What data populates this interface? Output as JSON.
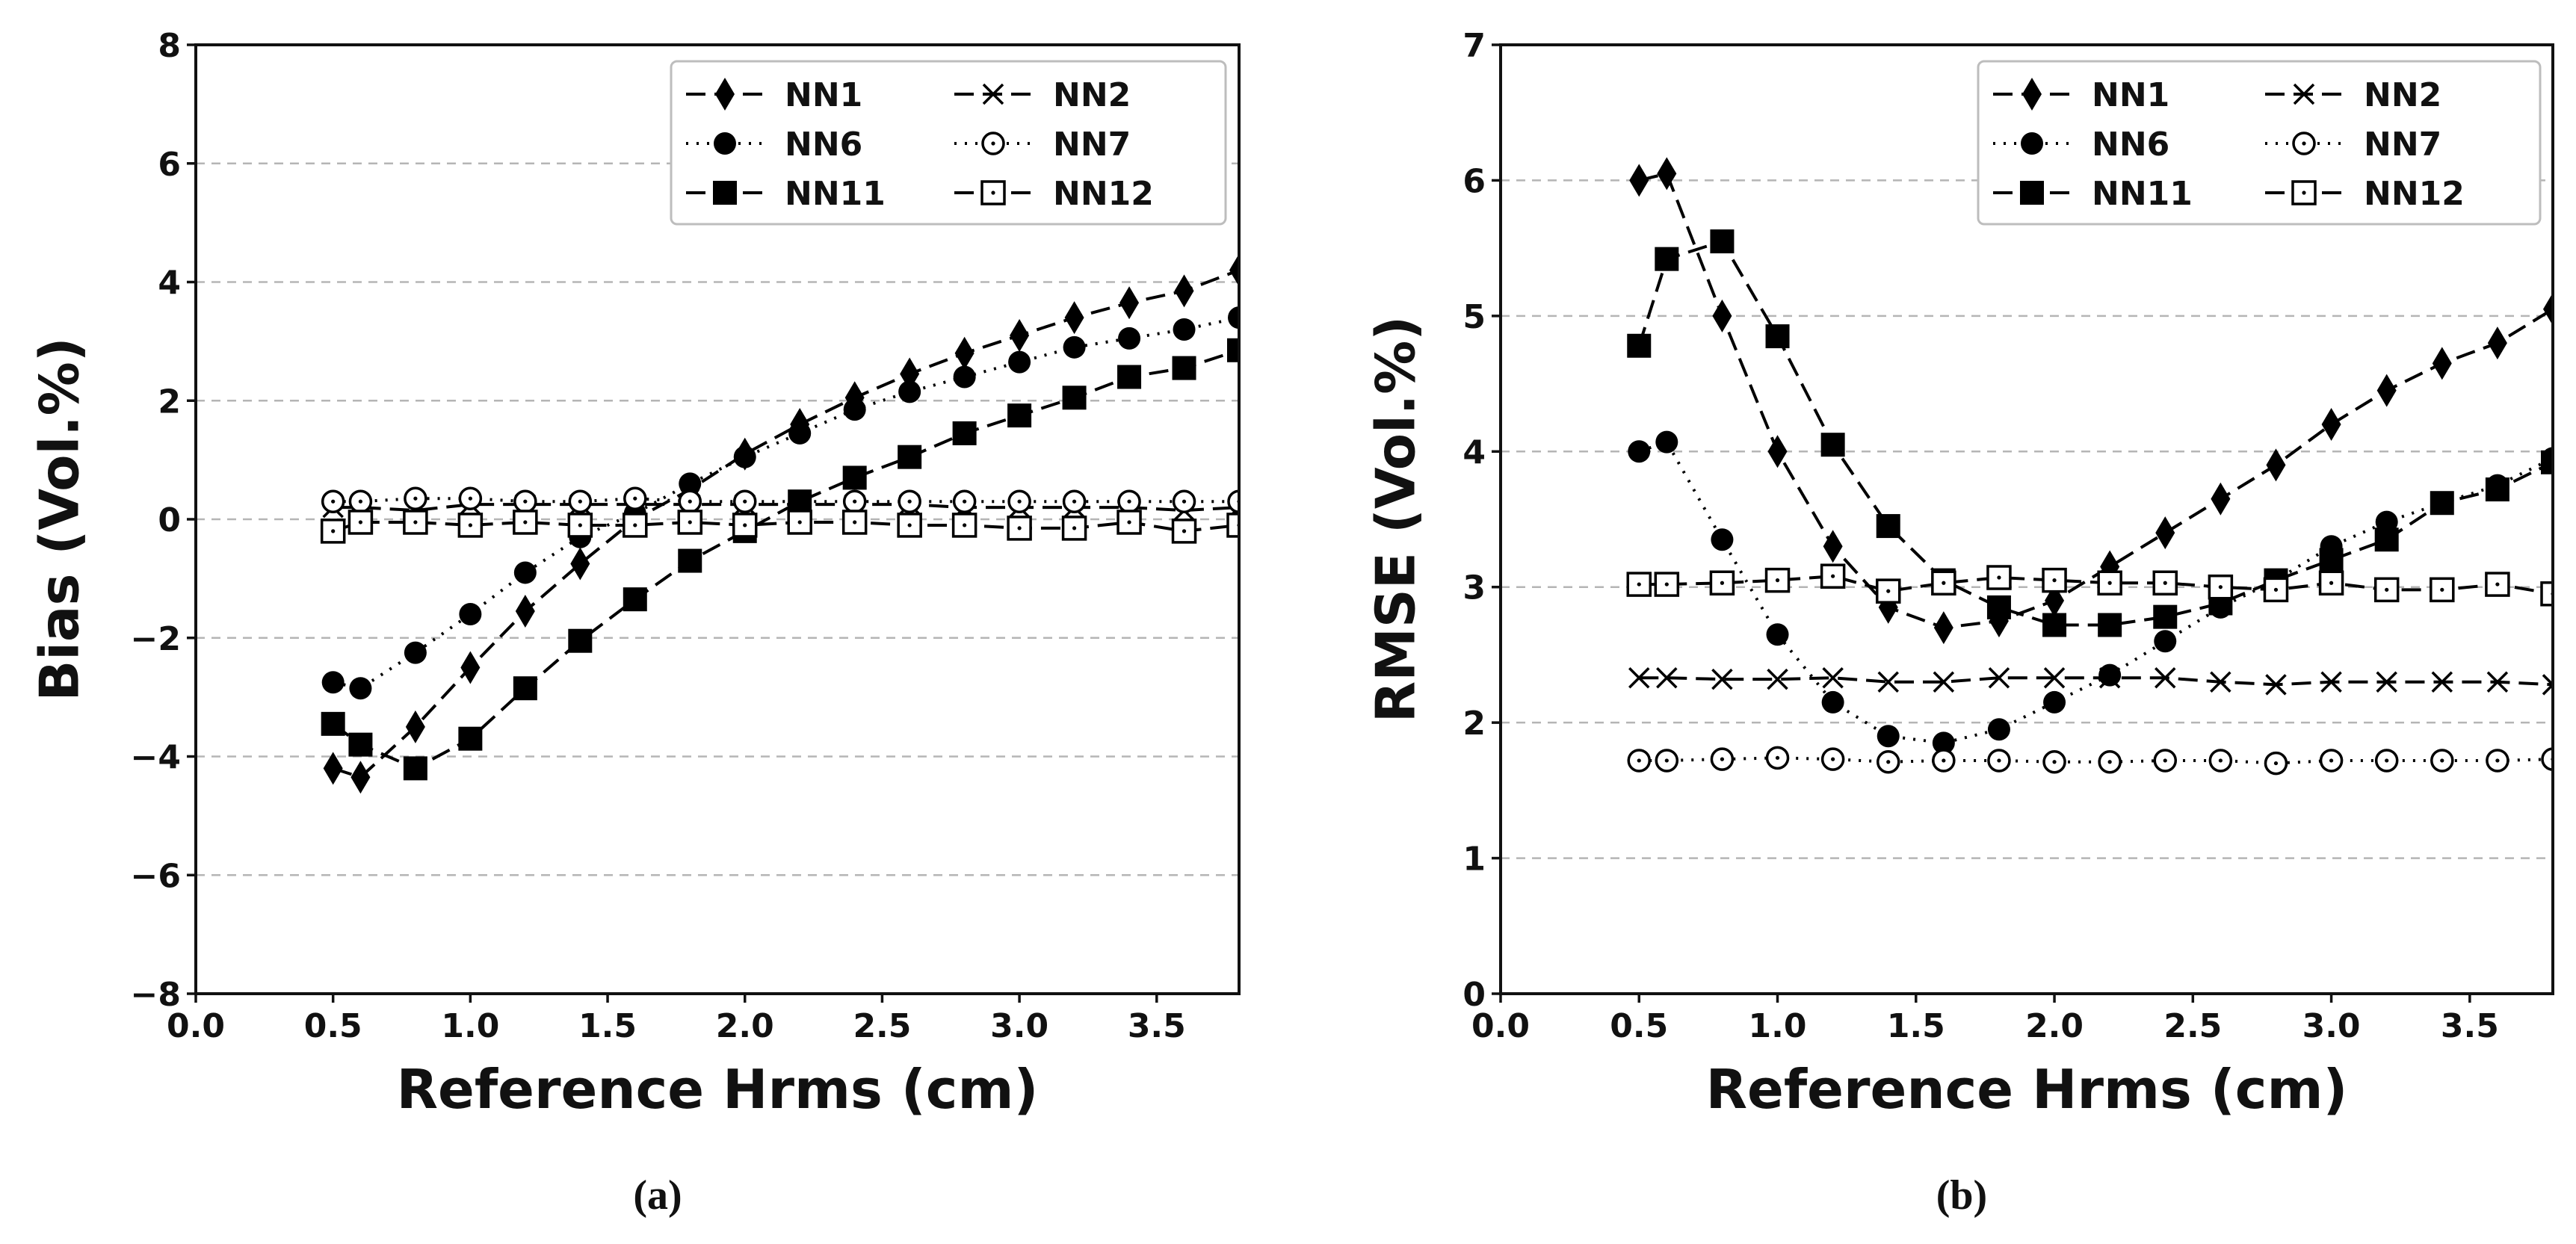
{
  "chart_data": [
    {
      "type": "line",
      "panel_label": "(a)",
      "xlabel": "Reference Hrms (cm)",
      "ylabel": "Bias (Vol.%)",
      "xlim": [
        0.0,
        3.8
      ],
      "ylim": [
        -8,
        8
      ],
      "xticks": [
        0.0,
        0.5,
        1.0,
        1.5,
        2.0,
        2.5,
        3.0,
        3.5
      ],
      "xtick_labels": [
        "0.0",
        "0.5",
        "1.0",
        "1.5",
        "2.0",
        "2.5",
        "3.0",
        "3.5"
      ],
      "yticks": [
        -8,
        -6,
        -4,
        -2,
        0,
        2,
        4,
        6,
        8
      ],
      "ytick_labels": [
        "−8",
        "−6",
        "−4",
        "−2",
        "0",
        "2",
        "4",
        "6",
        "8"
      ],
      "grid": "horizontal dashed",
      "legend_position": "top-right",
      "x": [
        0.5,
        0.6,
        0.8,
        1.0,
        1.2,
        1.4,
        1.6,
        1.8,
        2.0,
        2.2,
        2.4,
        2.6,
        2.8,
        3.0,
        3.2,
        3.4,
        3.6,
        3.8
      ],
      "series": [
        {
          "name": "NN1",
          "marker": "diamond",
          "line": "dashed",
          "values": [
            -4.2,
            -4.35,
            -3.5,
            -2.5,
            -1.55,
            -0.75,
            0.0,
            0.5,
            1.1,
            1.6,
            2.05,
            2.45,
            2.8,
            3.1,
            3.4,
            3.65,
            3.85,
            4.2
          ]
        },
        {
          "name": "NN2",
          "marker": "x",
          "line": "dashed",
          "values": [
            0.2,
            0.2,
            0.15,
            0.25,
            0.25,
            0.25,
            0.25,
            0.25,
            0.25,
            0.25,
            0.25,
            0.25,
            0.2,
            0.2,
            0.2,
            0.2,
            0.15,
            0.2
          ]
        },
        {
          "name": "NN6",
          "marker": "filled-circle",
          "line": "dotted",
          "values": [
            -2.75,
            -2.85,
            -2.25,
            -1.6,
            -0.9,
            -0.3,
            0.1,
            0.6,
            1.05,
            1.45,
            1.85,
            2.15,
            2.4,
            2.65,
            2.9,
            3.05,
            3.2,
            3.4
          ]
        },
        {
          "name": "NN7",
          "marker": "open-circle",
          "line": "dotted",
          "values": [
            0.3,
            0.3,
            0.35,
            0.35,
            0.3,
            0.3,
            0.35,
            0.3,
            0.3,
            0.3,
            0.3,
            0.3,
            0.3,
            0.3,
            0.3,
            0.3,
            0.3,
            0.3
          ]
        },
        {
          "name": "NN11",
          "marker": "filled-square",
          "line": "dashed",
          "values": [
            -3.45,
            -3.8,
            -4.2,
            -3.7,
            -2.85,
            -2.05,
            -1.35,
            -0.7,
            -0.2,
            0.3,
            0.7,
            1.05,
            1.45,
            1.75,
            2.05,
            2.4,
            2.55,
            2.85
          ]
        },
        {
          "name": "NN12",
          "marker": "open-square-dot",
          "line": "dashed",
          "values": [
            -0.2,
            -0.05,
            -0.05,
            -0.1,
            -0.05,
            -0.1,
            -0.1,
            -0.05,
            -0.1,
            -0.05,
            -0.05,
            -0.1,
            -0.1,
            -0.15,
            -0.15,
            -0.05,
            -0.2,
            -0.1
          ]
        }
      ]
    },
    {
      "type": "line",
      "panel_label": "(b)",
      "xlabel": "Reference Hrms (cm)",
      "ylabel": "RMSE (Vol.%)",
      "xlim": [
        0.0,
        3.8
      ],
      "ylim": [
        0,
        7
      ],
      "xticks": [
        0.0,
        0.5,
        1.0,
        1.5,
        2.0,
        2.5,
        3.0,
        3.5
      ],
      "xtick_labels": [
        "0.0",
        "0.5",
        "1.0",
        "1.5",
        "2.0",
        "2.5",
        "3.0",
        "3.5"
      ],
      "yticks": [
        0,
        1,
        2,
        3,
        4,
        5,
        6,
        7
      ],
      "ytick_labels": [
        "0",
        "1",
        "2",
        "3",
        "4",
        "5",
        "6",
        "7"
      ],
      "grid": "horizontal dashed",
      "legend_position": "top-right",
      "x": [
        0.5,
        0.6,
        0.8,
        1.0,
        1.2,
        1.4,
        1.6,
        1.8,
        2.0,
        2.2,
        2.4,
        2.6,
        2.8,
        3.0,
        3.2,
        3.4,
        3.6,
        3.8
      ],
      "series": [
        {
          "name": "NN1",
          "marker": "diamond",
          "line": "dashed",
          "values": [
            6.0,
            6.05,
            5.0,
            4.0,
            3.3,
            2.85,
            2.7,
            2.75,
            2.9,
            3.15,
            3.4,
            3.65,
            3.9,
            4.2,
            4.45,
            4.65,
            4.8,
            5.05
          ]
        },
        {
          "name": "NN2",
          "marker": "x",
          "line": "dashed",
          "values": [
            2.33,
            2.33,
            2.32,
            2.32,
            2.33,
            2.3,
            2.3,
            2.33,
            2.33,
            2.33,
            2.33,
            2.3,
            2.28,
            2.3,
            2.3,
            2.3,
            2.3,
            2.28
          ]
        },
        {
          "name": "NN6",
          "marker": "filled-circle",
          "line": "dotted",
          "values": [
            4.0,
            4.07,
            3.35,
            2.65,
            2.15,
            1.9,
            1.85,
            1.95,
            2.15,
            2.35,
            2.6,
            2.85,
            3.05,
            3.3,
            3.48,
            3.62,
            3.75,
            3.95
          ]
        },
        {
          "name": "NN7",
          "marker": "open-circle",
          "line": "dotted",
          "values": [
            1.72,
            1.72,
            1.73,
            1.74,
            1.73,
            1.71,
            1.72,
            1.72,
            1.71,
            1.71,
            1.72,
            1.72,
            1.7,
            1.72,
            1.72,
            1.72,
            1.72,
            1.73
          ]
        },
        {
          "name": "NN11",
          "marker": "filled-square",
          "line": "dashed",
          "values": [
            4.78,
            5.42,
            5.55,
            4.85,
            4.05,
            3.45,
            3.05,
            2.85,
            2.72,
            2.72,
            2.78,
            2.88,
            3.05,
            3.2,
            3.35,
            3.62,
            3.72,
            3.92
          ]
        },
        {
          "name": "NN12",
          "marker": "open-square-dot",
          "line": "dashed",
          "values": [
            3.02,
            3.02,
            3.03,
            3.05,
            3.08,
            2.97,
            3.03,
            3.07,
            3.05,
            3.03,
            3.03,
            3.0,
            2.98,
            3.03,
            2.98,
            2.98,
            3.02,
            2.95
          ]
        }
      ]
    }
  ]
}
